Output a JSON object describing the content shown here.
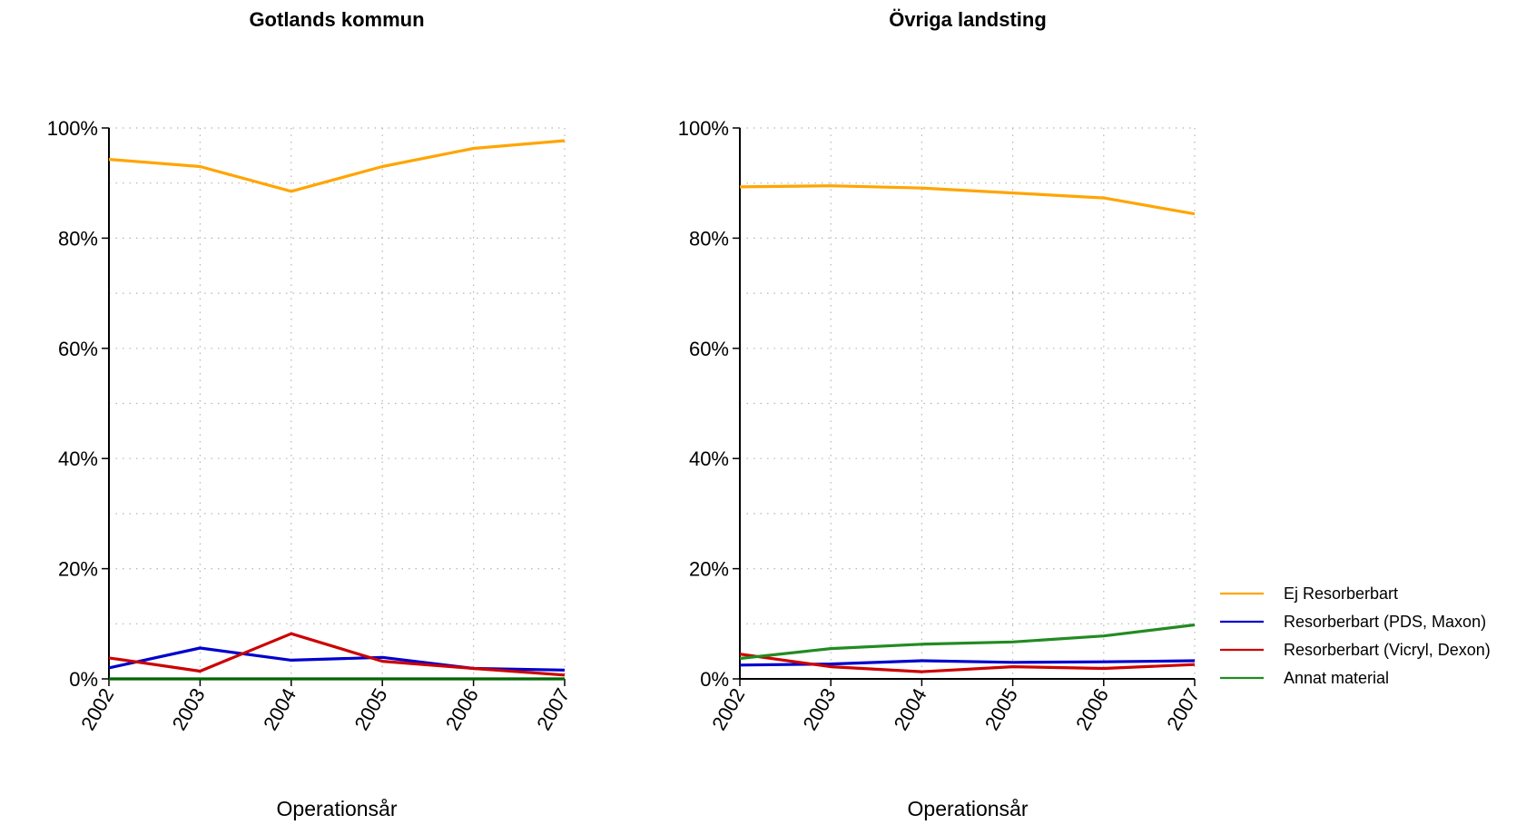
{
  "legend": {
    "placement": "right-bottom",
    "entries": [
      {
        "label": "Ej Resorberbart",
        "color": "#FFA500"
      },
      {
        "label": "Resorberbart (PDS, Maxon)",
        "color": "#0000CD"
      },
      {
        "label": "Resorberbart (Vicryl, Dexon)",
        "color": "#CD0000"
      },
      {
        "label": "Annat material",
        "color": "#228B22"
      }
    ]
  },
  "chart_data": [
    {
      "type": "line",
      "title": "Gotlands kommun",
      "xlabel": "Operationsår",
      "ylabel": "",
      "x": [
        "2002",
        "2003",
        "2004",
        "2005",
        "2006",
        "2007"
      ],
      "ylim": [
        0,
        100
      ],
      "yticks": [
        "0%",
        "20%",
        "40%",
        "60%",
        "80%",
        "100%"
      ],
      "grid": true,
      "series": [
        {
          "name": "Ej Resorberbart",
          "color": "#FFA500",
          "values": [
            94.3,
            93.0,
            88.5,
            93.0,
            96.3,
            97.7
          ]
        },
        {
          "name": "Resorberbart (PDS, Maxon)",
          "color": "#0000CD",
          "values": [
            2.0,
            5.6,
            3.4,
            3.9,
            1.9,
            1.6
          ]
        },
        {
          "name": "Resorberbart (Vicryl, Dexon)",
          "color": "#CD0000",
          "values": [
            3.8,
            1.4,
            8.2,
            3.2,
            1.9,
            0.7
          ]
        },
        {
          "name": "Annat material",
          "color": "#006400",
          "values": [
            0.0,
            0.0,
            0.0,
            0.0,
            0.0,
            0.0
          ]
        }
      ]
    },
    {
      "type": "line",
      "title": "Övriga landsting",
      "xlabel": "Operationsår",
      "ylabel": "",
      "x": [
        "2002",
        "2003",
        "2004",
        "2005",
        "2006",
        "2007"
      ],
      "ylim": [
        0,
        100
      ],
      "yticks": [
        "0%",
        "20%",
        "40%",
        "60%",
        "80%",
        "100%"
      ],
      "grid": true,
      "series": [
        {
          "name": "Ej Resorberbart",
          "color": "#FFA500",
          "values": [
            89.3,
            89.5,
            89.1,
            88.2,
            87.3,
            84.4
          ]
        },
        {
          "name": "Resorberbart (PDS, Maxon)",
          "color": "#0000CD",
          "values": [
            2.5,
            2.7,
            3.3,
            3.0,
            3.1,
            3.3
          ]
        },
        {
          "name": "Resorberbart (Vicryl, Dexon)",
          "color": "#CD0000",
          "values": [
            4.5,
            2.2,
            1.3,
            2.2,
            1.9,
            2.6
          ]
        },
        {
          "name": "Annat material",
          "color": "#228B22",
          "values": [
            3.7,
            5.5,
            6.3,
            6.7,
            7.8,
            9.8
          ]
        }
      ]
    }
  ]
}
